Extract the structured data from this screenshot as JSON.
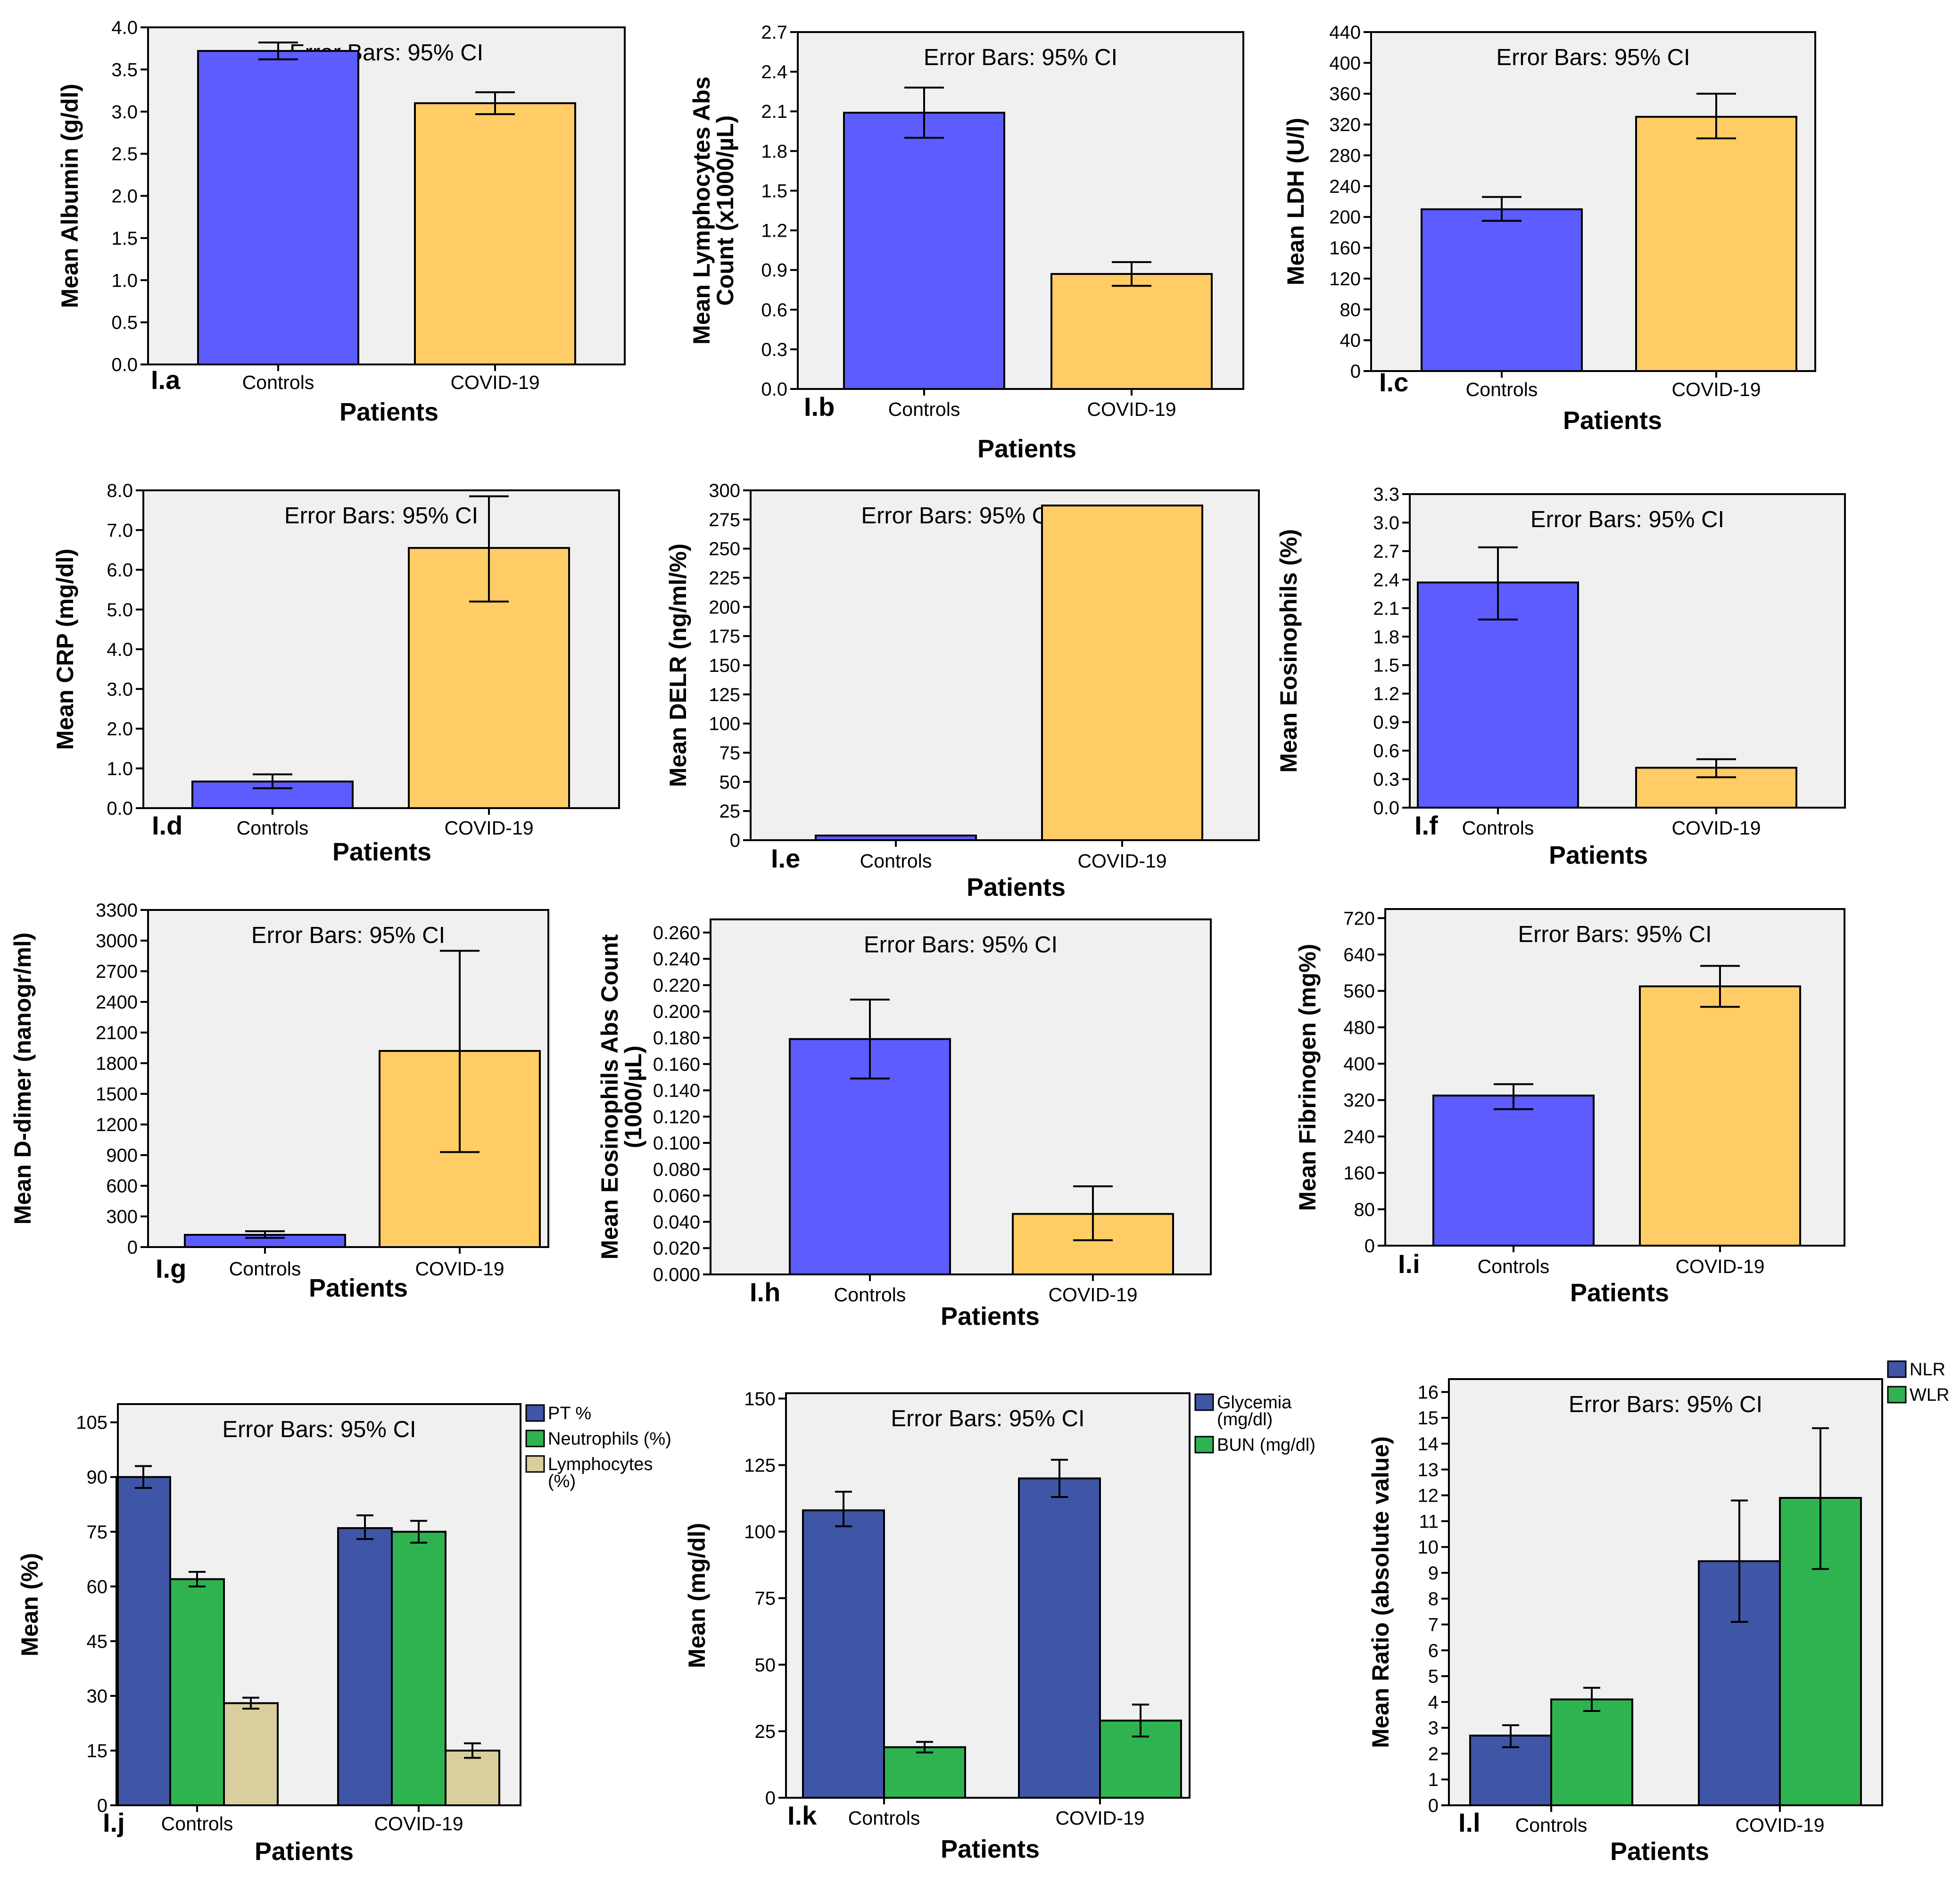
{
  "chart_data": [
    {
      "type": "bar",
      "panel": "I.a",
      "title": "Error Bars: 95% CI",
      "xlabel": "Patients",
      "ylabel": [
        "Mean Albumin (g/dl)"
      ],
      "categories": [
        "Controls",
        "COVID-19"
      ],
      "ylim": [
        0,
        4.0
      ],
      "yticks": [
        "0.0",
        "0.5",
        "1.0",
        "1.5",
        "2.0",
        "2.5",
        "3.0",
        "3.5",
        "4.0"
      ],
      "series": [
        {
          "name": "Mean",
          "colors": [
            "#5c5cff",
            "#ffcc66"
          ],
          "values": [
            3.72,
            3.1
          ],
          "ci_low": [
            3.62,
            2.97
          ],
          "ci_high": [
            3.82,
            3.23
          ]
        }
      ]
    },
    {
      "type": "bar",
      "panel": "I.b",
      "title": "Error Bars: 95% CI",
      "xlabel": "Patients",
      "ylabel": [
        "Mean Lymphocytes Abs",
        "Count (x1000/µL)"
      ],
      "categories": [
        "Controls",
        "COVID-19"
      ],
      "ylim": [
        0,
        2.7
      ],
      "yticks": [
        "0.0",
        "0.3",
        "0.6",
        "0.9",
        "1.2",
        "1.5",
        "1.8",
        "2.1",
        "2.4",
        "2.7"
      ],
      "series": [
        {
          "name": "Mean",
          "colors": [
            "#5c5cff",
            "#ffcc66"
          ],
          "values": [
            2.09,
            0.87
          ],
          "ci_low": [
            1.9,
            0.78
          ],
          "ci_high": [
            2.28,
            0.96
          ]
        }
      ]
    },
    {
      "type": "bar",
      "panel": "I.c",
      "title": "Error Bars: 95% CI",
      "xlabel": "Patients",
      "ylabel": [
        "Mean LDH (U/l)"
      ],
      "categories": [
        "Controls",
        "COVID-19"
      ],
      "ylim": [
        0,
        440
      ],
      "yticks": [
        "0",
        "40",
        "80",
        "120",
        "160",
        "200",
        "240",
        "280",
        "320",
        "360",
        "400",
        "440"
      ],
      "series": [
        {
          "name": "Mean",
          "colors": [
            "#5c5cff",
            "#ffcc66"
          ],
          "values": [
            210,
            330
          ],
          "ci_low": [
            195,
            302
          ],
          "ci_high": [
            226,
            360
          ]
        }
      ]
    },
    {
      "type": "bar",
      "panel": "I.d",
      "title": "Error Bars: 95% CI",
      "xlabel": "Patients",
      "ylabel": [
        "Mean CRP (mg/dl)"
      ],
      "categories": [
        "Controls",
        "COVID-19"
      ],
      "ylim": [
        0,
        8.0
      ],
      "yticks": [
        "0.0",
        "1.0",
        "2.0",
        "3.0",
        "4.0",
        "5.0",
        "6.0",
        "7.0",
        "8.0"
      ],
      "series": [
        {
          "name": "Mean",
          "colors": [
            "#5c5cff",
            "#ffcc66"
          ],
          "values": [
            0.67,
            6.55
          ],
          "ci_low": [
            0.5,
            5.2
          ],
          "ci_high": [
            0.85,
            7.85
          ]
        }
      ]
    },
    {
      "type": "bar",
      "panel": "I.e",
      "title": "Error Bars: 95% CI",
      "xlabel": "Patients",
      "ylabel": [
        "Mean DELR (ng/ml/%)"
      ],
      "categories": [
        "Controls",
        "COVID-19"
      ],
      "ylim": [
        0,
        300
      ],
      "yticks": [
        "0",
        "25",
        "50",
        "75",
        "100",
        "125",
        "150",
        "175",
        "200",
        "225",
        "250",
        "275",
        "300"
      ],
      "series": [
        {
          "name": "Mean",
          "colors": [
            "#5c5cff",
            "#ffcc66"
          ],
          "values": [
            4,
            287
          ],
          "ci_low": [
            null,
            null
          ],
          "ci_high": [
            null,
            null
          ]
        }
      ]
    },
    {
      "type": "bar",
      "panel": "I.f",
      "title": "Error Bars: 95% CI",
      "xlabel": "Patients",
      "ylabel": [
        "Mean Eosinophils (%)"
      ],
      "categories": [
        "Controls",
        "COVID-19"
      ],
      "ylim": [
        0,
        3.3
      ],
      "yticks": [
        "0.0",
        "0.3",
        "0.6",
        "0.9",
        "1.2",
        "1.5",
        "1.8",
        "2.1",
        "2.4",
        "2.7",
        "3.0",
        "3.3"
      ],
      "series": [
        {
          "name": "Mean",
          "colors": [
            "#5c5cff",
            "#ffcc66"
          ],
          "values": [
            2.37,
            0.42
          ],
          "ci_low": [
            1.98,
            0.32
          ],
          "ci_high": [
            2.74,
            0.51
          ]
        }
      ]
    },
    {
      "type": "bar",
      "panel": "I.g",
      "title": "Error Bars: 95% CI",
      "xlabel": "Patients",
      "ylabel": [
        "Mean D-dimer (nanogr/ml)"
      ],
      "categories": [
        "Controls",
        "COVID-19"
      ],
      "ylim": [
        0,
        3300
      ],
      "yticks": [
        "0",
        "300",
        "600",
        "900",
        "1200",
        "1500",
        "1800",
        "2100",
        "2400",
        "2700",
        "3000",
        "3300"
      ],
      "series": [
        {
          "name": "Mean",
          "colors": [
            "#5c5cff",
            "#ffcc66"
          ],
          "values": [
            120,
            1920
          ],
          "ci_low": [
            90,
            930
          ],
          "ci_high": [
            155,
            2900
          ]
        }
      ]
    },
    {
      "type": "bar",
      "panel": "I.h",
      "title": "Error Bars: 95% CI",
      "xlabel": "Patients",
      "ylabel": [
        "Mean Eosinophils Abs Count",
        "(1000/µL)"
      ],
      "categories": [
        "Controls",
        "COVID-19"
      ],
      "ylim": [
        0,
        0.27
      ],
      "yticks": [
        "0.000",
        "0.020",
        "0.040",
        "0.060",
        "0.080",
        "0.100",
        "0.120",
        "0.140",
        "0.160",
        "0.180",
        "0.200",
        "0.220",
        "0.240",
        "0.260"
      ],
      "series": [
        {
          "name": "Mean",
          "colors": [
            "#5c5cff",
            "#ffcc66"
          ],
          "values": [
            0.179,
            0.046
          ],
          "ci_low": [
            0.149,
            0.026
          ],
          "ci_high": [
            0.209,
            0.067
          ]
        }
      ]
    },
    {
      "type": "bar",
      "panel": "I.i",
      "title": "Error Bars: 95% CI",
      "xlabel": "Patients",
      "ylabel": [
        "Mean Fibrinogen (mg%)"
      ],
      "categories": [
        "Controls",
        "COVID-19"
      ],
      "ylim": [
        0,
        740
      ],
      "yticks": [
        "0",
        "80",
        "160",
        "240",
        "320",
        "400",
        "480",
        "560",
        "640",
        "720"
      ],
      "series": [
        {
          "name": "Mean",
          "colors": [
            "#5c5cff",
            "#ffcc66"
          ],
          "values": [
            330,
            570
          ],
          "ci_low": [
            300,
            525
          ],
          "ci_high": [
            355,
            615
          ]
        }
      ]
    },
    {
      "type": "bar",
      "panel": "I.j",
      "title": "Error Bars: 95% CI",
      "xlabel": "Patients",
      "ylabel": [
        "Mean (%)"
      ],
      "categories": [
        "Controls",
        "COVID-19"
      ],
      "ylim": [
        0,
        110
      ],
      "yticks": [
        "0",
        "15",
        "30",
        "45",
        "60",
        "75",
        "90",
        "105"
      ],
      "legend": [
        {
          "lines": [
            "PT %"
          ],
          "color": "#3f55a5"
        },
        {
          "lines": [
            "Neutrophils (%)"
          ],
          "color": "#2fb350"
        },
        {
          "lines": [
            "Lymphocytes",
            "(%)"
          ],
          "color": "#d9cf9e"
        }
      ],
      "series": [
        {
          "name": "PT %",
          "color": "#3f55a5",
          "values": [
            90,
            76
          ],
          "ci_low": [
            87,
            73
          ],
          "ci_high": [
            93,
            79.5
          ]
        },
        {
          "name": "Neutrophils (%)",
          "color": "#2fb350",
          "values": [
            62,
            75
          ],
          "ci_low": [
            60,
            72
          ],
          "ci_high": [
            64,
            78
          ]
        },
        {
          "name": "Lymphocytes (%)",
          "color": "#d9cf9e",
          "values": [
            28,
            15
          ],
          "ci_low": [
            26.5,
            13
          ],
          "ci_high": [
            29.5,
            17
          ]
        }
      ]
    },
    {
      "type": "bar",
      "panel": "I.k",
      "title": "Error Bars: 95% CI",
      "xlabel": "Patients",
      "ylabel": [
        "Mean (mg/dl)"
      ],
      "categories": [
        "Controls",
        "COVID-19"
      ],
      "ylim": [
        0,
        152
      ],
      "yticks": [
        "0",
        "25",
        "50",
        "75",
        "100",
        "125",
        "150"
      ],
      "legend": [
        {
          "lines": [
            "Glycemia",
            "(mg/dl)"
          ],
          "color": "#3f55a5"
        },
        {
          "lines": [
            "BUN (mg/dl)"
          ],
          "color": "#2fb350"
        }
      ],
      "series": [
        {
          "name": "Glycemia (mg/dl)",
          "color": "#3f55a5",
          "values": [
            108,
            120
          ],
          "ci_low": [
            102,
            113
          ],
          "ci_high": [
            115,
            127
          ]
        },
        {
          "name": "BUN (mg/dl)",
          "color": "#2fb350",
          "values": [
            19,
            29
          ],
          "ci_low": [
            17,
            23
          ],
          "ci_high": [
            21,
            35
          ]
        }
      ]
    },
    {
      "type": "bar",
      "panel": "I.l",
      "title": "Error Bars: 95% CI",
      "xlabel": "Patients",
      "ylabel": [
        "Mean Ratio (absolute value)"
      ],
      "categories": [
        "Controls",
        "COVID-19"
      ],
      "ylim": [
        0,
        16.5
      ],
      "yticks": [
        "0",
        "1",
        "2",
        "3",
        "4",
        "5",
        "6",
        "7",
        "8",
        "9",
        "10",
        "11",
        "12",
        "13",
        "14",
        "15",
        "16"
      ],
      "legend": [
        {
          "lines": [
            "NLR"
          ],
          "color": "#3f55a5"
        },
        {
          "lines": [
            "WLR"
          ],
          "color": "#2fb350"
        }
      ],
      "series": [
        {
          "name": "NLR",
          "color": "#3f55a5",
          "values": [
            2.7,
            9.45
          ],
          "ci_low": [
            2.25,
            7.1
          ],
          "ci_high": [
            3.1,
            11.8
          ]
        },
        {
          "name": "WLR",
          "color": "#2fb350",
          "values": [
            4.1,
            11.9
          ],
          "ci_low": [
            3.65,
            9.15
          ],
          "ci_high": [
            4.55,
            14.6
          ]
        }
      ]
    }
  ]
}
